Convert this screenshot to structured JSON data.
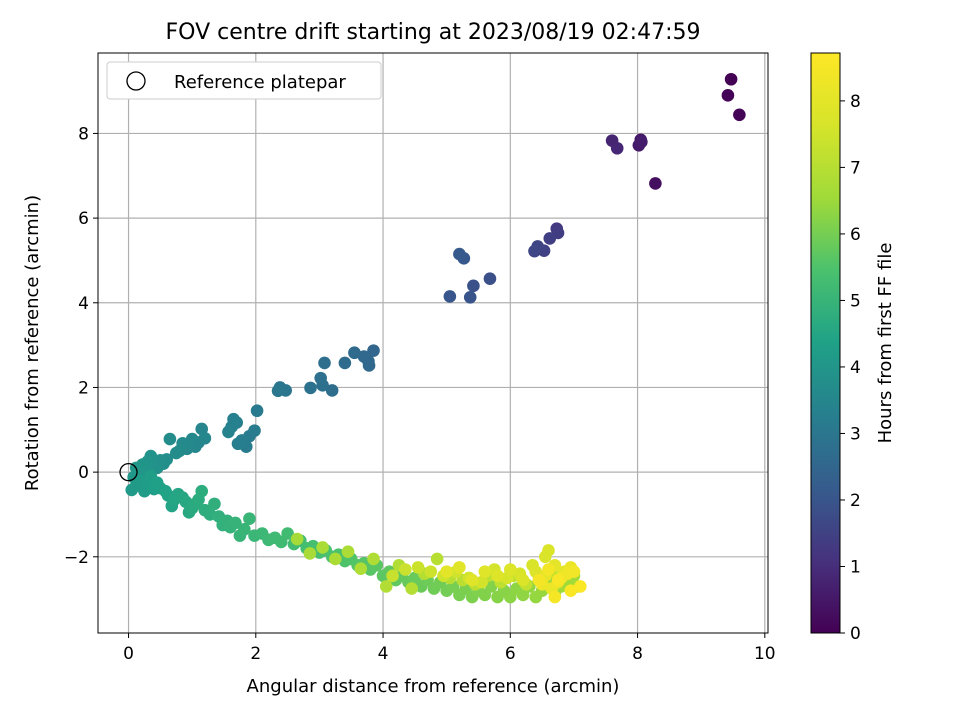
{
  "chart_data": {
    "type": "scatter",
    "title": "FOV centre drift starting at 2023/08/19 02:47:59",
    "xlabel": "Angular distance from reference (arcmin)",
    "ylabel": "Rotation from reference (arcmin)",
    "xlim": [
      -0.48,
      10.05
    ],
    "ylim": [
      -3.8,
      9.9
    ],
    "xticks": [
      0,
      2,
      4,
      6,
      8,
      10
    ],
    "yticks": [
      -2,
      0,
      2,
      4,
      6,
      8
    ],
    "ytick_labels": [
      "−2",
      "0",
      "2",
      "4",
      "6",
      "8"
    ],
    "grid": true,
    "colormap": "viridis",
    "legend": {
      "location": "upper left",
      "entries": [
        "Reference platepar"
      ]
    },
    "reference_point": {
      "name": "Reference platepar",
      "x": 0,
      "y": 0
    },
    "colorbar": {
      "label": "Hours from first FF file",
      "min": 0,
      "max": 8.72,
      "ticks": [
        0,
        1,
        2,
        3,
        4,
        5,
        6,
        7,
        8
      ]
    },
    "series": [
      {
        "fields": [
          "x",
          "y",
          "hours"
        ],
        "points": [
          [
            9.47,
            9.28,
            0.02
          ],
          [
            9.42,
            8.9,
            0.05
          ],
          [
            9.6,
            8.44,
            0.08
          ],
          [
            8.28,
            6.82,
            0.32
          ],
          [
            8.05,
            7.85,
            0.5
          ],
          [
            8.02,
            7.72,
            0.55
          ],
          [
            8.06,
            7.8,
            0.62
          ],
          [
            7.6,
            7.83,
            0.78
          ],
          [
            7.68,
            7.65,
            0.85
          ],
          [
            6.73,
            5.75,
            1.3
          ],
          [
            6.75,
            5.65,
            1.35
          ],
          [
            6.62,
            5.52,
            1.42
          ],
          [
            6.53,
            5.23,
            1.5
          ],
          [
            6.43,
            5.33,
            1.55
          ],
          [
            6.38,
            5.22,
            1.62
          ],
          [
            5.68,
            4.57,
            1.85
          ],
          [
            5.42,
            4.4,
            1.92
          ],
          [
            5.37,
            4.13,
            1.98
          ],
          [
            5.05,
            4.15,
            2.02
          ],
          [
            5.27,
            5.05,
            2.08
          ],
          [
            5.2,
            5.15,
            2.12
          ],
          [
            3.85,
            2.87,
            2.48
          ],
          [
            3.77,
            2.62,
            2.52
          ],
          [
            3.78,
            2.52,
            2.55
          ],
          [
            3.7,
            2.73,
            2.58
          ],
          [
            3.55,
            2.82,
            2.62
          ],
          [
            3.4,
            2.58,
            2.66
          ],
          [
            3.2,
            1.93,
            2.72
          ],
          [
            3.08,
            2.58,
            2.76
          ],
          [
            3.05,
            2.05,
            2.8
          ],
          [
            3.02,
            2.22,
            2.84
          ],
          [
            2.86,
            1.99,
            2.88
          ],
          [
            2.47,
            1.93,
            2.95
          ],
          [
            2.38,
            2.0,
            2.98
          ],
          [
            2.35,
            1.92,
            3.02
          ],
          [
            2.02,
            1.45,
            3.1
          ],
          [
            1.98,
            0.98,
            3.13
          ],
          [
            1.9,
            0.85,
            3.16
          ],
          [
            1.85,
            0.6,
            3.19
          ],
          [
            1.78,
            0.75,
            3.22
          ],
          [
            1.72,
            0.67,
            3.25
          ],
          [
            1.7,
            1.17,
            3.28
          ],
          [
            1.65,
            1.25,
            3.31
          ],
          [
            1.62,
            1.07,
            3.34
          ],
          [
            1.57,
            0.95,
            3.37
          ],
          [
            1.15,
            1.02,
            3.45
          ],
          [
            1.2,
            0.8,
            3.48
          ],
          [
            1.1,
            0.7,
            3.51
          ],
          [
            1.05,
            0.6,
            3.54
          ],
          [
            1.0,
            0.78,
            3.57
          ],
          [
            0.92,
            0.55,
            3.6
          ],
          [
            0.85,
            0.68,
            3.63
          ],
          [
            0.8,
            0.5,
            3.66
          ],
          [
            0.75,
            0.45,
            3.69
          ],
          [
            0.65,
            0.78,
            3.72
          ],
          [
            0.6,
            0.3,
            3.75
          ],
          [
            0.55,
            0.2,
            3.78
          ],
          [
            0.5,
            0.28,
            3.81
          ],
          [
            0.45,
            0.1,
            3.84
          ],
          [
            0.4,
            0.15,
            3.87
          ],
          [
            0.35,
            0.38,
            3.9
          ],
          [
            0.3,
            0.25,
            3.93
          ],
          [
            0.28,
            0.05,
            3.96
          ],
          [
            0.22,
            0.18,
            3.99
          ],
          [
            0.18,
            -0.05,
            4.02
          ],
          [
            0.12,
            0.1,
            4.05
          ],
          [
            0.08,
            -0.12,
            4.08
          ],
          [
            0.05,
            -0.42,
            4.12
          ],
          [
            0.12,
            -0.32,
            4.15
          ],
          [
            0.2,
            -0.2,
            4.18
          ],
          [
            0.25,
            -0.45,
            4.21
          ],
          [
            0.3,
            -0.3,
            4.24
          ],
          [
            0.35,
            -0.1,
            4.27
          ],
          [
            0.4,
            -0.4,
            4.3
          ],
          [
            0.45,
            -0.25,
            4.33
          ],
          [
            0.5,
            -0.38,
            4.36
          ],
          [
            0.58,
            -0.45,
            4.39
          ],
          [
            0.62,
            -0.55,
            4.42
          ],
          [
            0.68,
            -0.8,
            4.45
          ],
          [
            0.72,
            -0.65,
            4.48
          ],
          [
            0.78,
            -0.52,
            4.51
          ],
          [
            0.85,
            -0.6,
            4.54
          ],
          [
            0.9,
            -0.7,
            4.57
          ],
          [
            0.95,
            -0.95,
            4.6
          ],
          [
            1.0,
            -0.85,
            4.63
          ],
          [
            1.05,
            -0.75,
            4.66
          ],
          [
            1.1,
            -0.65,
            4.69
          ],
          [
            1.15,
            -0.45,
            4.72
          ],
          [
            1.2,
            -0.9,
            4.75
          ],
          [
            1.28,
            -1.0,
            4.78
          ],
          [
            1.35,
            -0.75,
            4.81
          ],
          [
            1.42,
            -1.05,
            4.84
          ],
          [
            1.48,
            -1.25,
            4.87
          ],
          [
            1.55,
            -1.15,
            4.9
          ],
          [
            1.6,
            -1.3,
            4.93
          ],
          [
            1.68,
            -1.2,
            4.96
          ],
          [
            1.75,
            -1.5,
            4.99
          ],
          [
            1.82,
            -1.35,
            5.02
          ],
          [
            1.9,
            -1.1,
            5.05
          ],
          [
            1.98,
            -1.5,
            5.08
          ],
          [
            2.1,
            -1.45,
            5.11
          ],
          [
            2.2,
            -1.6,
            5.14
          ],
          [
            2.3,
            -1.55,
            5.17
          ],
          [
            2.4,
            -1.65,
            5.2
          ],
          [
            2.5,
            -1.45,
            5.23
          ],
          [
            2.6,
            -1.7,
            5.26
          ],
          [
            2.7,
            -1.62,
            5.29
          ],
          [
            2.8,
            -1.8,
            5.32
          ],
          [
            2.9,
            -1.75,
            5.35
          ],
          [
            3.0,
            -1.9,
            5.38
          ],
          [
            3.1,
            -1.85,
            5.41
          ],
          [
            3.2,
            -2.0,
            5.44
          ],
          [
            3.3,
            -1.95,
            5.47
          ],
          [
            3.4,
            -2.1,
            5.5
          ],
          [
            3.5,
            -2.05,
            5.53
          ],
          [
            3.6,
            -2.2,
            5.56
          ],
          [
            3.7,
            -2.15,
            5.59
          ],
          [
            3.8,
            -2.3,
            5.62
          ],
          [
            3.9,
            -2.2,
            5.65
          ],
          [
            4.0,
            -2.45,
            5.68
          ],
          [
            4.1,
            -2.35,
            5.71
          ],
          [
            4.2,
            -2.55,
            5.74
          ],
          [
            4.3,
            -2.45,
            5.77
          ],
          [
            4.4,
            -2.6,
            5.8
          ],
          [
            4.5,
            -2.5,
            5.83
          ],
          [
            4.6,
            -2.7,
            5.86
          ],
          [
            4.7,
            -2.55,
            5.89
          ],
          [
            4.8,
            -2.75,
            5.92
          ],
          [
            4.9,
            -2.6,
            5.95
          ],
          [
            5.0,
            -2.8,
            5.98
          ],
          [
            5.1,
            -2.7,
            6.01
          ],
          [
            5.2,
            -2.9,
            6.04
          ],
          [
            5.3,
            -2.75,
            6.07
          ],
          [
            5.4,
            -2.95,
            6.1
          ],
          [
            5.5,
            -2.8,
            6.13
          ],
          [
            5.6,
            -2.9,
            6.16
          ],
          [
            5.7,
            -2.7,
            6.19
          ],
          [
            5.8,
            -2.95,
            6.22
          ],
          [
            5.9,
            -2.8,
            6.25
          ],
          [
            6.0,
            -2.95,
            6.28
          ],
          [
            6.1,
            -2.75,
            6.31
          ],
          [
            6.2,
            -2.9,
            6.34
          ],
          [
            6.3,
            -2.7,
            6.37
          ],
          [
            6.4,
            -2.95,
            6.4
          ],
          [
            6.5,
            -2.8,
            6.43
          ],
          [
            6.6,
            -2.6,
            6.46
          ],
          [
            6.7,
            -2.85,
            6.49
          ],
          [
            6.8,
            -2.7,
            6.52
          ],
          [
            6.9,
            -2.55,
            6.55
          ],
          [
            7.0,
            -2.45,
            6.58
          ],
          [
            7.05,
            -2.7,
            6.61
          ],
          [
            6.95,
            -2.3,
            6.64
          ],
          [
            2.65,
            -1.58,
            6.67
          ],
          [
            2.85,
            -1.92,
            6.7
          ],
          [
            3.05,
            -1.78,
            6.73
          ],
          [
            3.25,
            -2.05,
            6.76
          ],
          [
            3.45,
            -1.88,
            6.79
          ],
          [
            3.65,
            -2.28,
            6.82
          ],
          [
            3.85,
            -2.05,
            6.85
          ],
          [
            4.05,
            -2.7,
            6.88
          ],
          [
            4.25,
            -2.2,
            6.91
          ],
          [
            4.45,
            -2.75,
            6.94
          ],
          [
            4.65,
            -2.4,
            6.97
          ],
          [
            4.85,
            -2.05,
            7.0
          ],
          [
            5.05,
            -2.5,
            7.03
          ],
          [
            5.25,
            -2.55,
            7.06
          ],
          [
            5.45,
            -2.65,
            7.09
          ],
          [
            5.65,
            -2.45,
            7.12
          ],
          [
            5.85,
            -2.6,
            7.15
          ],
          [
            6.05,
            -2.45,
            7.18
          ],
          [
            6.25,
            -2.65,
            7.21
          ],
          [
            6.45,
            -2.5,
            7.24
          ],
          [
            6.65,
            -2.35,
            7.27
          ],
          [
            6.85,
            -2.4,
            7.3
          ],
          [
            4.15,
            -2.45,
            7.35
          ],
          [
            4.35,
            -2.3,
            7.38
          ],
          [
            4.55,
            -2.25,
            7.41
          ],
          [
            4.75,
            -2.35,
            7.44
          ],
          [
            4.95,
            -2.45,
            7.47
          ],
          [
            5.15,
            -2.35,
            7.5
          ],
          [
            5.35,
            -2.5,
            7.53
          ],
          [
            5.55,
            -2.6,
            7.56
          ],
          [
            5.75,
            -2.3,
            7.59
          ],
          [
            5.95,
            -2.5,
            7.62
          ],
          [
            6.15,
            -2.4,
            7.65
          ],
          [
            6.35,
            -2.2,
            7.68
          ],
          [
            6.55,
            -2.0,
            7.71
          ],
          [
            6.6,
            -1.85,
            7.74
          ],
          [
            6.4,
            -2.35,
            7.77
          ],
          [
            6.2,
            -2.55,
            7.8
          ],
          [
            6.0,
            -2.3,
            7.83
          ],
          [
            5.8,
            -2.45,
            7.86
          ],
          [
            5.6,
            -2.35,
            7.89
          ],
          [
            5.4,
            -2.55,
            7.92
          ],
          [
            5.2,
            -2.25,
            7.95
          ],
          [
            5.0,
            -2.35,
            7.98
          ],
          [
            6.7,
            -2.2,
            8.02
          ],
          [
            6.85,
            -2.35,
            8.06
          ],
          [
            6.55,
            -2.45,
            8.1
          ],
          [
            6.75,
            -2.6,
            8.14
          ],
          [
            6.95,
            -2.25,
            8.18
          ],
          [
            6.65,
            -2.75,
            8.22
          ],
          [
            6.5,
            -2.65,
            8.26
          ],
          [
            6.8,
            -2.5,
            8.3
          ],
          [
            6.9,
            -2.4,
            8.34
          ],
          [
            7.0,
            -2.35,
            8.38
          ],
          [
            6.6,
            -2.3,
            8.42
          ],
          [
            6.45,
            -2.55,
            8.46
          ],
          [
            6.7,
            -2.95,
            8.5
          ],
          [
            6.75,
            -2.55,
            8.55
          ],
          [
            6.95,
            -2.8,
            8.6
          ],
          [
            7.1,
            -2.7,
            8.65
          ]
        ]
      }
    ]
  }
}
